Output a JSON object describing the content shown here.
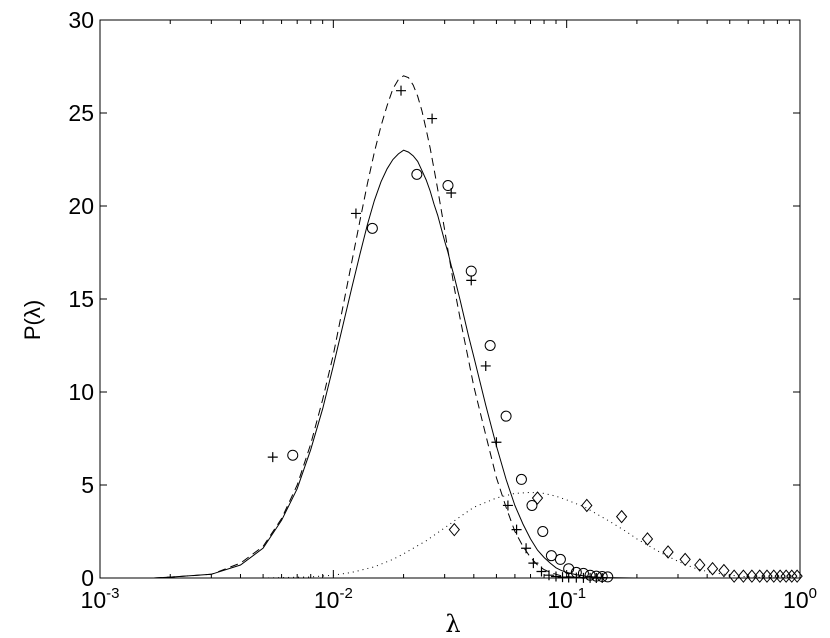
{
  "chart_data": {
    "type": "scatter",
    "title": "",
    "xlabel": "λ",
    "ylabel": "P(λ)",
    "xscale": "log",
    "xlim": [
      0.001,
      1
    ],
    "ylim": [
      0,
      30
    ],
    "grid": false,
    "legend": "none",
    "x_ticks": [
      {
        "base": "10",
        "exp": "-3",
        "value": 0.001
      },
      {
        "base": "10",
        "exp": "-2",
        "value": 0.01
      },
      {
        "base": "10",
        "exp": "-1",
        "value": 0.1
      },
      {
        "base": "10",
        "exp": "0",
        "value": 1
      }
    ],
    "y_ticks": [
      "0",
      "5",
      "10",
      "15",
      "20",
      "25",
      "30"
    ],
    "series": [
      {
        "style": "dashed-line",
        "color": "#000000",
        "x": [
          0.0017,
          0.002,
          0.003,
          0.004,
          0.005,
          0.006,
          0.007,
          0.008,
          0.009,
          0.01,
          0.011,
          0.012,
          0.013,
          0.014,
          0.015,
          0.016,
          0.017,
          0.018,
          0.019,
          0.02,
          0.021,
          0.022,
          0.023,
          0.024,
          0.025,
          0.026,
          0.027,
          0.028,
          0.029,
          0.03,
          0.031,
          0.032,
          0.033,
          0.035,
          0.038,
          0.04,
          0.045,
          0.05,
          0.055,
          0.06,
          0.065,
          0.07,
          0.075,
          0.08,
          0.085,
          0.09,
          0.095,
          0.1,
          0.11,
          0.12,
          0.13,
          0.14,
          0.15
        ],
        "y": [
          0.0,
          0.05,
          0.2,
          0.8,
          1.7,
          3.2,
          5.0,
          7.2,
          9.6,
          12.0,
          14.6,
          17.0,
          19.2,
          21.2,
          22.9,
          24.3,
          25.4,
          26.3,
          26.8,
          27.0,
          26.9,
          26.5,
          25.9,
          25.1,
          24.1,
          23.1,
          22.0,
          20.9,
          19.8,
          18.7,
          17.6,
          16.6,
          15.6,
          13.9,
          11.7,
          10.3,
          7.7,
          5.4,
          3.8,
          2.5,
          1.7,
          1.1,
          0.7,
          0.45,
          0.3,
          0.2,
          0.12,
          0.08,
          0.04,
          0.02,
          0.01,
          0.01,
          0.0
        ]
      },
      {
        "style": "solid-line",
        "color": "#000000",
        "x": [
          0.0017,
          0.002,
          0.003,
          0.004,
          0.005,
          0.006,
          0.007,
          0.008,
          0.009,
          0.01,
          0.011,
          0.012,
          0.013,
          0.014,
          0.015,
          0.016,
          0.017,
          0.018,
          0.019,
          0.02,
          0.021,
          0.022,
          0.023,
          0.024,
          0.025,
          0.026,
          0.027,
          0.028,
          0.029,
          0.03,
          0.031,
          0.032,
          0.033,
          0.035,
          0.038,
          0.04,
          0.045,
          0.05,
          0.055,
          0.06,
          0.065,
          0.07,
          0.075,
          0.08,
          0.085,
          0.09,
          0.095,
          0.1,
          0.11,
          0.12,
          0.13,
          0.14,
          0.15,
          0.2,
          0.25
        ],
        "y": [
          0.0,
          0.05,
          0.2,
          0.7,
          1.6,
          3.1,
          4.8,
          6.9,
          9.1,
          11.4,
          13.6,
          15.6,
          17.4,
          19.0,
          20.3,
          21.3,
          22.0,
          22.5,
          22.8,
          23.0,
          22.9,
          22.7,
          22.4,
          21.9,
          21.4,
          20.8,
          20.1,
          19.5,
          18.8,
          18.1,
          17.5,
          16.8,
          16.2,
          14.9,
          13.0,
          11.9,
          9.3,
          7.1,
          5.3,
          3.9,
          2.9,
          2.1,
          1.5,
          1.1,
          0.8,
          0.55,
          0.4,
          0.3,
          0.18,
          0.1,
          0.06,
          0.03,
          0.02,
          0.0,
          0.0
        ]
      },
      {
        "style": "dotted-line",
        "color": "#000000",
        "x": [
          0.005,
          0.006,
          0.008,
          0.01,
          0.012,
          0.015,
          0.018,
          0.02,
          0.025,
          0.03,
          0.035,
          0.04,
          0.05,
          0.06,
          0.07,
          0.08,
          0.09,
          0.1,
          0.12,
          0.15,
          0.18,
          0.2,
          0.25,
          0.3,
          0.35,
          0.4,
          0.5,
          0.6,
          0.7,
          0.8,
          1.0
        ],
        "y": [
          0.0,
          0.02,
          0.06,
          0.15,
          0.3,
          0.6,
          1.0,
          1.3,
          2.0,
          2.7,
          3.3,
          3.8,
          4.3,
          4.55,
          4.6,
          4.55,
          4.4,
          4.2,
          3.8,
          3.1,
          2.5,
          2.1,
          1.4,
          0.9,
          0.55,
          0.35,
          0.15,
          0.06,
          0.02,
          0.01,
          0.0
        ]
      },
      {
        "style": "plus-markers",
        "color": "#000000",
        "x": [
          0.0055,
          0.0125,
          0.0195,
          0.0265,
          0.032,
          0.039,
          0.045,
          0.05,
          0.056,
          0.061,
          0.067,
          0.072,
          0.078,
          0.084,
          0.09,
          0.096,
          0.102,
          0.11,
          0.118,
          0.126,
          0.134,
          0.142
        ],
        "y": [
          6.5,
          19.6,
          26.2,
          24.7,
          20.7,
          16.0,
          11.4,
          7.3,
          3.9,
          2.6,
          1.6,
          0.8,
          0.35,
          0.15,
          0.08,
          0.05,
          0.03,
          0.02,
          0.01,
          0.01,
          0.0,
          0.0
        ]
      },
      {
        "style": "circle-markers",
        "color": "#000000",
        "x": [
          0.0067,
          0.0147,
          0.0228,
          0.031,
          0.039,
          0.047,
          0.055,
          0.064,
          0.071,
          0.079,
          0.086,
          0.094,
          0.102,
          0.11,
          0.118,
          0.126,
          0.134,
          0.142,
          0.15
        ],
        "y": [
          6.6,
          18.8,
          21.7,
          21.1,
          16.5,
          12.5,
          8.7,
          5.3,
          3.9,
          2.5,
          1.2,
          1.0,
          0.5,
          0.3,
          0.25,
          0.15,
          0.1,
          0.08,
          0.06
        ]
      },
      {
        "style": "diamond-markers",
        "color": "#000000",
        "x": [
          0.033,
          0.075,
          0.122,
          0.172,
          0.222,
          0.272,
          0.322,
          0.372,
          0.422,
          0.472,
          0.522,
          0.572,
          0.622,
          0.672,
          0.722,
          0.772,
          0.822,
          0.872,
          0.922,
          0.972
        ],
        "y": [
          2.6,
          4.3,
          3.9,
          3.3,
          2.1,
          1.4,
          1.0,
          0.7,
          0.5,
          0.4,
          0.1,
          0.1,
          0.1,
          0.1,
          0.1,
          0.1,
          0.1,
          0.1,
          0.1,
          0.1
        ]
      }
    ]
  }
}
